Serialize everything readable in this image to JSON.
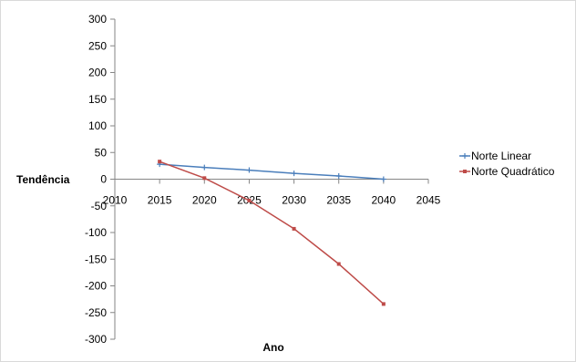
{
  "chart_data": {
    "type": "scatter",
    "xlabel": "Ano",
    "ylabel": "Tendência",
    "xlim": [
      2010,
      2045
    ],
    "ylim": [
      -300,
      300
    ],
    "xticks": [
      2010,
      2015,
      2020,
      2025,
      2030,
      2035,
      2040,
      2045
    ],
    "yticks": [
      300,
      250,
      200,
      150,
      100,
      50,
      0,
      -50,
      -100,
      -150,
      -200,
      -250,
      -300
    ],
    "legend_position": "right",
    "grid": false,
    "series": [
      {
        "name": "Norte Linear",
        "color": "#4a7ebb",
        "marker": "plus",
        "x": [
          2015,
          2020,
          2025,
          2030,
          2035,
          2040
        ],
        "y": [
          28,
          22,
          17,
          11,
          6,
          0
        ]
      },
      {
        "name": "Norte Quadrático",
        "color": "#be4b48",
        "marker": "square",
        "x": [
          2015,
          2020,
          2025,
          2030,
          2035,
          2040
        ],
        "y": [
          33,
          2,
          -40,
          -93,
          -159,
          -234
        ]
      }
    ]
  }
}
